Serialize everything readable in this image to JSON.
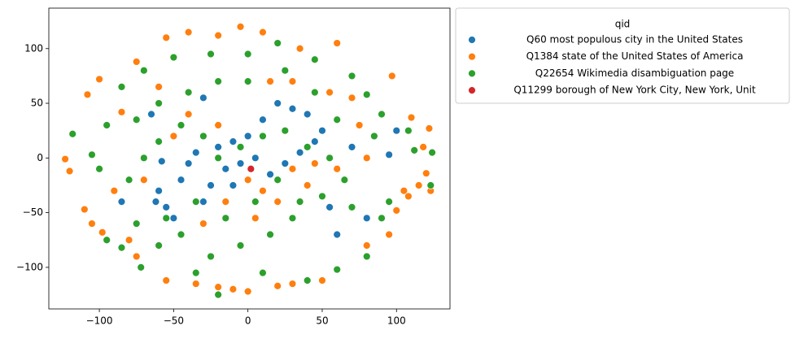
{
  "chart_data": {
    "type": "scatter",
    "legend_title": "qid",
    "xlim": [
      -134,
      136
    ],
    "ylim": [
      -138,
      137
    ],
    "xticks": [
      {
        "value": -100,
        "label": "−100"
      },
      {
        "value": -50,
        "label": "−50"
      },
      0,
      50,
      100
    ],
    "yticks": [
      {
        "value": -100,
        "label": "−100"
      },
      {
        "value": -50,
        "label": "−50"
      },
      0,
      50,
      100
    ],
    "series": [
      {
        "name": "Q60 most populous city in the United States",
        "color": "#1f77b4",
        "x": [
          -55,
          -62,
          -60,
          -45,
          -40,
          -35,
          -20,
          -10,
          0,
          10,
          20,
          30,
          40,
          45,
          35,
          25,
          -5,
          -15,
          -25,
          -30,
          -50,
          -58,
          -65,
          -10,
          5,
          60,
          80,
          100,
          95,
          50,
          -30,
          -85,
          15,
          55,
          70
        ],
        "y": [
          -45,
          -40,
          -30,
          -20,
          -5,
          5,
          10,
          15,
          20,
          35,
          50,
          45,
          40,
          15,
          5,
          -5,
          -5,
          -10,
          -25,
          -40,
          -55,
          -3,
          40,
          -25,
          0,
          -70,
          -55,
          25,
          3,
          25,
          55,
          -40,
          -15,
          -45,
          10
        ]
      },
      {
        "name": "Q1384 state of the United States of America",
        "color": "#ff7f0e",
        "x": [
          -123,
          -120,
          -110,
          -105,
          -100,
          -108,
          -98,
          -90,
          -85,
          -80,
          -75,
          -55,
          -35,
          -20,
          -10,
          0,
          20,
          30,
          50,
          80,
          95,
          100,
          115,
          120,
          123,
          118,
          122,
          110,
          97,
          60,
          35,
          10,
          -5,
          -20,
          -40,
          -55,
          -75,
          -60,
          -40,
          -20,
          0,
          10,
          20,
          30,
          40,
          55,
          70,
          75,
          60,
          80,
          -70,
          -50,
          -30,
          15,
          30,
          105,
          108,
          -15,
          5,
          45
        ],
        "y": [
          -1,
          -12,
          -47,
          -60,
          72,
          58,
          -68,
          -30,
          42,
          -75,
          -90,
          -112,
          -115,
          -118,
          -120,
          -122,
          -117,
          -115,
          -112,
          -80,
          -70,
          -48,
          -25,
          -14,
          -30,
          10,
          27,
          37,
          75,
          105,
          100,
          115,
          120,
          112,
          115,
          110,
          88,
          65,
          40,
          30,
          -20,
          -30,
          -40,
          -10,
          -25,
          60,
          55,
          30,
          -10,
          0,
          -20,
          20,
          -60,
          70,
          70,
          -30,
          -35,
          -40,
          -55,
          -5
        ]
      },
      {
        "name": "Q22654 Wikimedia disambiguation page",
        "color": "#2ca02c",
        "x": [
          -118,
          -105,
          -100,
          -95,
          -85,
          -72,
          -95,
          -85,
          -70,
          -50,
          -25,
          0,
          20,
          45,
          70,
          80,
          90,
          108,
          112,
          124,
          123,
          95,
          90,
          80,
          60,
          40,
          10,
          -20,
          -35,
          -60,
          -75,
          -80,
          -70,
          -60,
          -45,
          -30,
          -20,
          -5,
          10,
          25,
          40,
          55,
          65,
          50,
          30,
          15,
          -5,
          -25,
          -45,
          -55,
          -35,
          -15,
          5,
          20,
          35,
          60,
          45,
          25,
          0,
          -20,
          -40,
          -60,
          -75,
          70,
          85
        ],
        "y": [
          22,
          3,
          -10,
          -75,
          -82,
          -100,
          30,
          65,
          80,
          92,
          95,
          95,
          105,
          90,
          75,
          58,
          40,
          25,
          7,
          5,
          -25,
          -40,
          -55,
          -90,
          -102,
          -112,
          -105,
          -125,
          -105,
          -80,
          -60,
          -20,
          0,
          15,
          30,
          20,
          0,
          10,
          20,
          25,
          10,
          0,
          -20,
          -35,
          -55,
          -70,
          -80,
          -90,
          -70,
          -55,
          -40,
          -55,
          -40,
          -20,
          -40,
          35,
          60,
          80,
          70,
          70,
          60,
          50,
          35,
          -45,
          20
        ]
      },
      {
        "name": "Q11299 borough of New York City, New York, Unit",
        "color": "#d62728",
        "x": [
          2
        ],
        "y": [
          -10
        ]
      }
    ]
  }
}
